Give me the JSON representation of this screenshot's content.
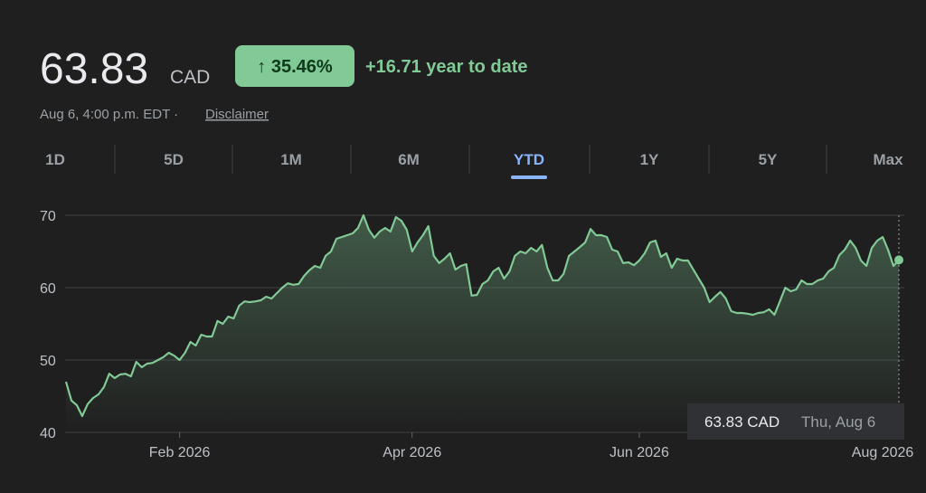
{
  "header": {
    "price": "63.83",
    "currency": "CAD",
    "change_badge": "↑ 35.46%",
    "change_text": "+16.71 year to date",
    "timestamp": "Aug 6, 4:00 p.m. EDT ·",
    "disclaimer": "Disclaimer"
  },
  "tabs": [
    "1D",
    "5D",
    "1M",
    "6M",
    "YTD",
    "1Y",
    "5Y",
    "Max"
  ],
  "active_tab": "YTD",
  "chart_data": {
    "type": "line",
    "color": "#81c995",
    "values": [
      47.0,
      44.4,
      43.75,
      42.25,
      43.9,
      44.75,
      45.25,
      46.25,
      48.1,
      47.5,
      48.0,
      48.1,
      47.75,
      49.75,
      49.0,
      49.5,
      49.6,
      50.0,
      50.4,
      51.0,
      50.6,
      50.0,
      51.0,
      52.5,
      52.0,
      53.5,
      53.25,
      53.25,
      55.4,
      55.0,
      56.0,
      55.75,
      57.5,
      58.1,
      58.0,
      58.1,
      58.25,
      58.75,
      58.5,
      59.25,
      60.0,
      60.6,
      60.4,
      60.5,
      61.6,
      62.4,
      63.0,
      62.75,
      64.4,
      65.0,
      66.75,
      67.0,
      67.25,
      67.5,
      68.25,
      70.0,
      68.0,
      66.9,
      67.75,
      68.25,
      67.75,
      69.75,
      69.25,
      68.0,
      65.0,
      66.25,
      67.25,
      68.5,
      64.4,
      63.4,
      64.0,
      64.75,
      62.5,
      63.0,
      63.25,
      58.9,
      59.0,
      60.5,
      61.0,
      62.25,
      62.75,
      61.25,
      62.25,
      64.4,
      65.0,
      64.75,
      65.5,
      65.0,
      65.9,
      62.75,
      61.0,
      61.0,
      61.9,
      64.4,
      65.0,
      65.6,
      66.25,
      68.1,
      67.25,
      67.25,
      67.0,
      65.25,
      65.0,
      63.4,
      63.5,
      63.1,
      63.75,
      64.75,
      66.25,
      66.5,
      64.25,
      64.75,
      62.75,
      64.0,
      63.75,
      63.75,
      62.5,
      61.25,
      60.0,
      58.0,
      58.75,
      59.4,
      58.5,
      56.75,
      56.5,
      56.5,
      56.4,
      56.25,
      56.5,
      56.6,
      57.0,
      56.25,
      58.1,
      60.0,
      59.5,
      59.75,
      61.0,
      60.5,
      60.5,
      61.0,
      61.25,
      62.25,
      62.75,
      64.5,
      65.25,
      66.5,
      65.5,
      63.75,
      63.0,
      65.5,
      66.5,
      67.0,
      65.25,
      63.0,
      63.83
    ],
    "xlim": [
      0,
      154
    ],
    "xticks": [
      {
        "value": 21,
        "label": "Feb 2026"
      },
      {
        "value": 64,
        "label": "Apr 2026"
      },
      {
        "value": 106,
        "label": "Jun 2026"
      },
      {
        "value": 151,
        "label": "Aug 2026"
      }
    ],
    "ylim": [
      40,
      70
    ],
    "yticks": [
      40,
      50,
      60,
      70
    ],
    "grid": true,
    "tooltip": {
      "value_label": "63.83 CAD",
      "date": "Thu, Aug 6"
    }
  }
}
